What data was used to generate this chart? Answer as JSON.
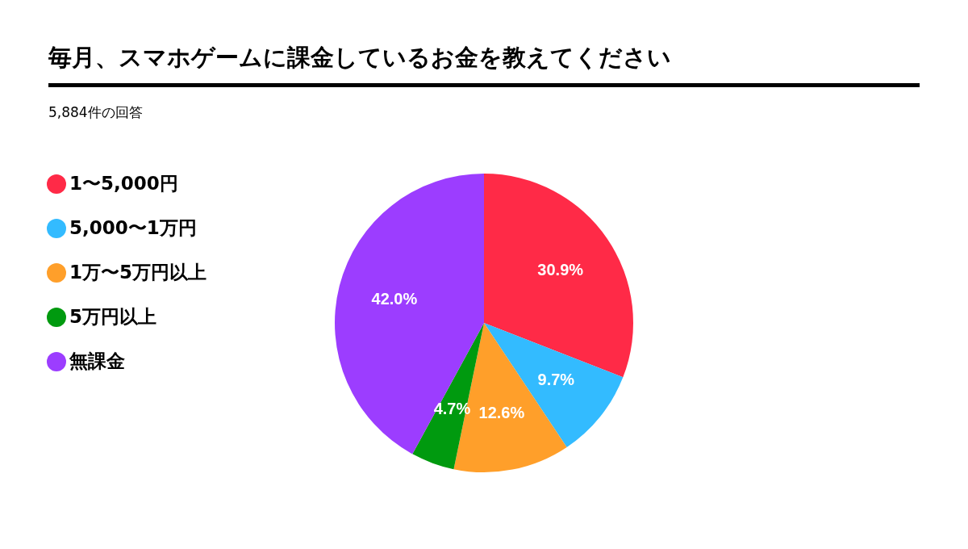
{
  "chart_data": {
    "type": "pie",
    "title": "毎月、スマホゲームに課金しているお金を教えてください",
    "subtitle": "5,884件の回答",
    "categories": [
      "1〜5,000円",
      "5,000〜1万円",
      "1万〜5万円以上",
      "5万円以上",
      "無課金"
    ],
    "values": [
      30.9,
      9.7,
      12.6,
      4.7,
      42.0
    ],
    "colors": [
      "#ff2a47",
      "#33bbff",
      "#ff9f2a",
      "#009a0f",
      "#9c3dff"
    ],
    "value_labels": [
      "30.9%",
      "9.7%",
      "12.6%",
      "4.7%",
      "42.0%"
    ],
    "legend": "left"
  }
}
